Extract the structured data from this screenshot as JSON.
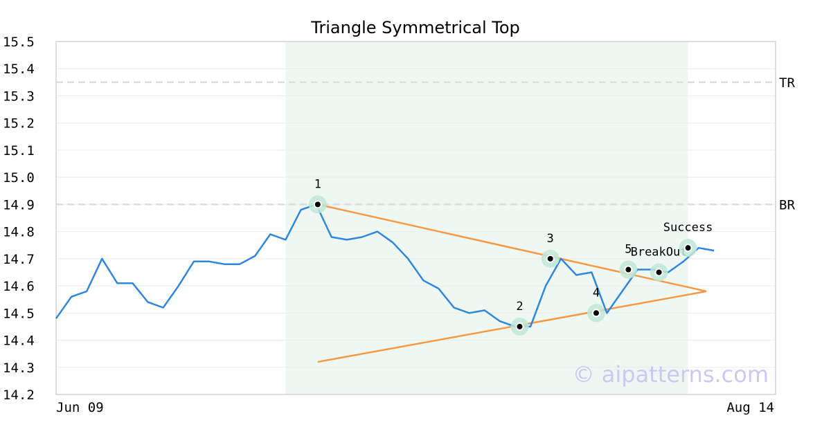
{
  "chart_data": {
    "type": "line",
    "title": "Triangle Symmetrical Top",
    "x_start_label": "Jun 09",
    "x_end_label": "Aug 14",
    "ylim": [
      14.2,
      15.5
    ],
    "yticks": [
      "15.5",
      "15.4",
      "15.3",
      "15.2",
      "15.1",
      "15.0",
      "14.9",
      "14.8",
      "14.7",
      "14.6",
      "14.5",
      "14.4",
      "14.3",
      "14.2"
    ],
    "grid": true,
    "series": [
      {
        "values": [
          14.48,
          14.56,
          14.58,
          14.7,
          14.61,
          14.61,
          14.54,
          14.52,
          14.6,
          14.69,
          14.69,
          14.68,
          14.68,
          14.71,
          14.79,
          14.77,
          14.88,
          14.9,
          14.78,
          14.77,
          14.78,
          14.8,
          14.76,
          14.7,
          14.62,
          14.59,
          14.52,
          14.5,
          14.51,
          14.47,
          14.45,
          14.45,
          14.6,
          14.7,
          14.64,
          14.65,
          14.5,
          14.58,
          14.66,
          14.66,
          14.65,
          14.69,
          14.74,
          14.73
        ],
        "color": "#2e86de"
      }
    ],
    "pattern_window": {
      "start_index": 15,
      "end_index": 41.3,
      "color": "#eef7f2"
    },
    "reference_lines": [
      {
        "label": "TR",
        "value": 15.35
      },
      {
        "label": "BR",
        "value": 14.9
      }
    ],
    "trendlines": [
      {
        "from": [
          17.1,
          14.9
        ],
        "to": [
          42.5,
          14.58
        ],
        "color": "#f59a42"
      },
      {
        "from": [
          17.1,
          14.32
        ],
        "to": [
          42.5,
          14.58
        ],
        "color": "#f59a42"
      }
    ],
    "pattern_points": [
      {
        "label": "1",
        "x": 17.1,
        "y": 14.9
      },
      {
        "label": "2",
        "x": 30.3,
        "y": 14.45
      },
      {
        "label": "3",
        "x": 32.3,
        "y": 14.7
      },
      {
        "label": "4",
        "x": 35.3,
        "y": 14.5
      },
      {
        "label": "5",
        "x": 37.4,
        "y": 14.66
      },
      {
        "label": "BreakOut",
        "x": 39.4,
        "y": 14.65
      },
      {
        "label": "Success",
        "x": 41.3,
        "y": 14.74
      }
    ],
    "watermark": "© aipatterns.com",
    "colors": {
      "line": "#2e86de",
      "trendline": "#f59a42",
      "highlight": "#eef7f2",
      "marker_halo": "#bfe8d6",
      "reference": "#dddddd"
    }
  }
}
